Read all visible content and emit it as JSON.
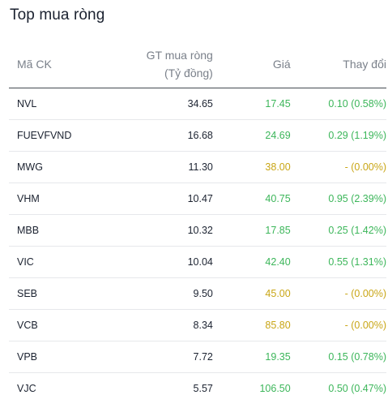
{
  "title": "Top mua ròng",
  "header": {
    "code": "Mã CK",
    "value_line1": "GT mua ròng",
    "value_line2": "(Tỷ đồng)",
    "price": "Giá",
    "change": "Thay đổi"
  },
  "colors": {
    "up": "#3cb65a",
    "flat": "#c9a616"
  },
  "rows": [
    {
      "code": "NVL",
      "value": "34.65",
      "price": "17.45",
      "change": "0.10 (0.58%)",
      "trend": "up"
    },
    {
      "code": "FUEVFVND",
      "value": "16.68",
      "price": "24.69",
      "change": "0.29 (1.19%)",
      "trend": "up"
    },
    {
      "code": "MWG",
      "value": "11.30",
      "price": "38.00",
      "change": "- (0.00%)",
      "trend": "flat"
    },
    {
      "code": "VHM",
      "value": "10.47",
      "price": "40.75",
      "change": "0.95 (2.39%)",
      "trend": "up"
    },
    {
      "code": "MBB",
      "value": "10.32",
      "price": "17.85",
      "change": "0.25 (1.42%)",
      "trend": "up"
    },
    {
      "code": "VIC",
      "value": "10.04",
      "price": "42.40",
      "change": "0.55 (1.31%)",
      "trend": "up"
    },
    {
      "code": "SEB",
      "value": "9.50",
      "price": "45.00",
      "change": "- (0.00%)",
      "trend": "flat"
    },
    {
      "code": "VCB",
      "value": "8.34",
      "price": "85.80",
      "change": "- (0.00%)",
      "trend": "flat"
    },
    {
      "code": "VPB",
      "value": "7.72",
      "price": "19.35",
      "change": "0.15 (0.78%)",
      "trend": "up"
    },
    {
      "code": "VJC",
      "value": "5.57",
      "price": "106.50",
      "change": "0.50 (0.47%)",
      "trend": "up"
    }
  ]
}
